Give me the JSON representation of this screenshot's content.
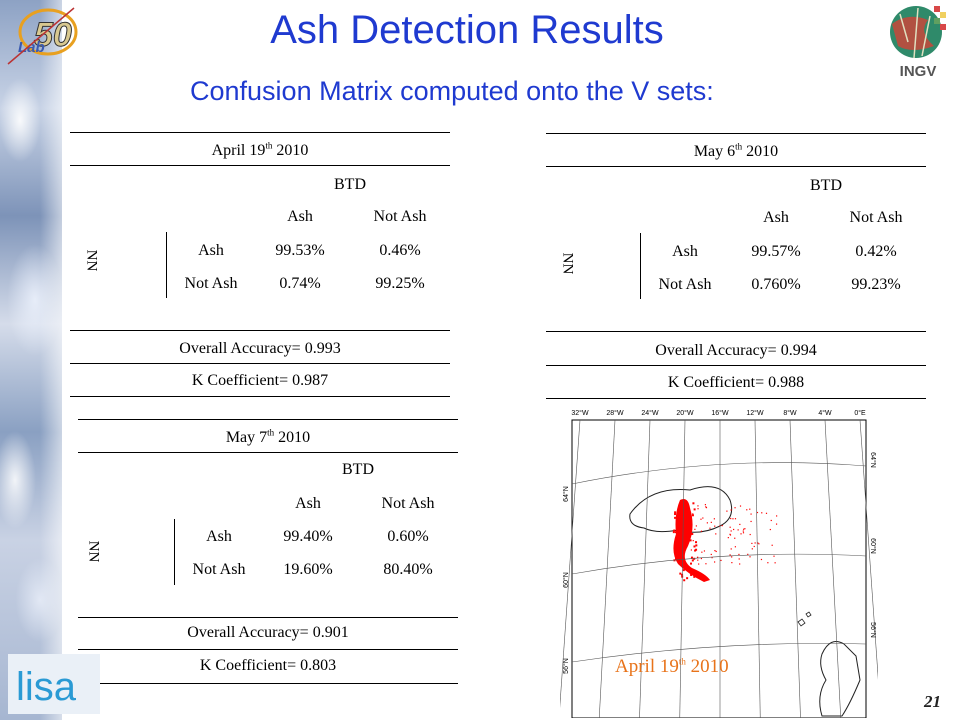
{
  "slide": {
    "title": "Ash Detection Results",
    "subtitle": "Confusion Matrix computed onto the V sets:",
    "page_number": "21",
    "map_caption_prefix": "April 19",
    "map_caption_sup": "th",
    "map_caption_suffix": " 2010"
  },
  "logos": {
    "top_left_text": "Lab",
    "top_right_text": "INGV",
    "bottom_left_text": "lisa"
  },
  "tables": [
    {
      "date_prefix": "April 19",
      "date_sup": "th",
      "date_suffix": " 2010",
      "btd": "BTD",
      "nn": "NN",
      "col_ash": "Ash",
      "col_not_ash": "Not Ash",
      "row_ash": "Ash",
      "row_not_ash": "Not Ash",
      "ash_ash": "99.53%",
      "ash_not": "0.46%",
      "not_ash": "0.74%",
      "not_not": "99.25%",
      "overall": "Overall Accuracy= 0.993",
      "kappa": "K Coefficient= 0.987"
    },
    {
      "date_prefix": "May 6",
      "date_sup": "th",
      "date_suffix": " 2010",
      "btd": "BTD",
      "nn": "NN",
      "col_ash": "Ash",
      "col_not_ash": "Not Ash",
      "row_ash": "Ash",
      "row_not_ash": "Not Ash",
      "ash_ash": "99.57%",
      "ash_not": "0.42%",
      "not_ash": "0.760%",
      "not_not": "99.23%",
      "overall": "Overall Accuracy= 0.994",
      "kappa": "K Coefficient= 0.988"
    },
    {
      "date_prefix": "May 7",
      "date_sup": "th",
      "date_suffix": " 2010",
      "btd": "BTD",
      "nn": "NN",
      "col_ash": "Ash",
      "col_not_ash": "Not Ash",
      "row_ash": "Ash",
      "row_not_ash": "Not Ash",
      "ash_ash": "99.40%",
      "ash_not": "0.60%",
      "not_ash": "19.60%",
      "not_not": "80.40%",
      "overall": "Overall Accuracy= 0.901",
      "kappa": "K Coefficient= 0.803"
    }
  ],
  "map": {
    "lon_labels": [
      "32°W",
      "28°W",
      "24°W",
      "20°W",
      "16°W",
      "12°W",
      "8°W",
      "4°W",
      "0°E"
    ],
    "lat_labels_left": [
      "64°N",
      "60°N",
      "56°N"
    ],
    "lat_labels_right": [
      "64°N",
      "60°N",
      "56°N"
    ],
    "ash_color": "#ff0000"
  },
  "colors": {
    "title": "#1f3ad0",
    "caption": "#e8731a"
  }
}
